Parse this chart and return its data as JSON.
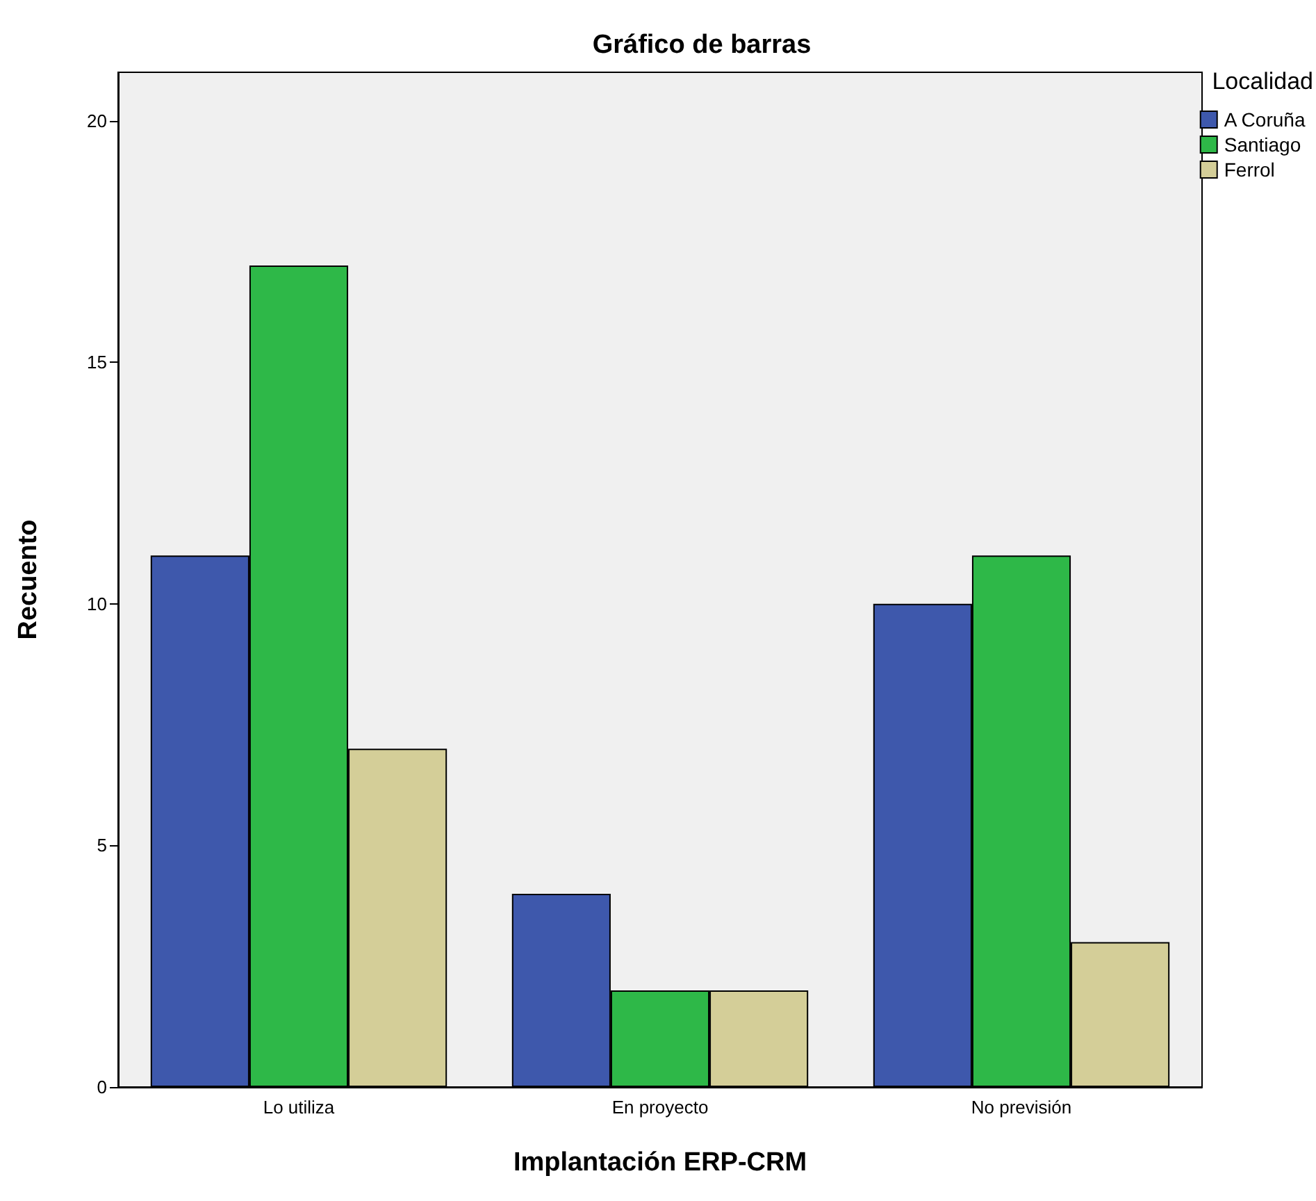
{
  "chart_data": {
    "type": "bar",
    "title": "Gráfico de barras",
    "xlabel": "Implantación ERP-CRM",
    "ylabel": "Recuento",
    "legend_title": "Localidad",
    "categories": [
      "Lo utiliza",
      "En proyecto",
      "No previsión"
    ],
    "series": [
      {
        "name": "A Coruña",
        "color": "#3e58ac",
        "values": [
          11,
          4,
          10
        ]
      },
      {
        "name": "Santiago",
        "color": "#2eb848",
        "values": [
          17,
          2,
          11
        ]
      },
      {
        "name": "Ferrol",
        "color": "#d4ce98",
        "values": [
          7,
          2,
          3
        ]
      }
    ],
    "ylim": [
      0,
      21
    ],
    "yticks": [
      0,
      5,
      10,
      15,
      20
    ],
    "grid": false,
    "legend": "top right"
  }
}
